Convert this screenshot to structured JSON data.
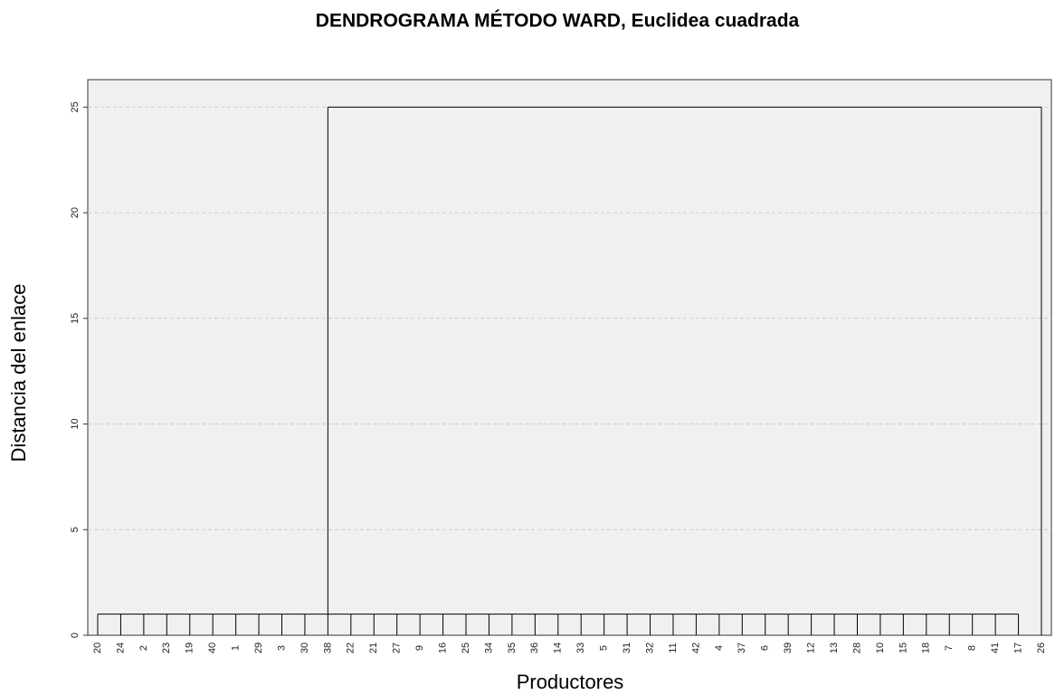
{
  "chart_data": {
    "type": "dendrogram",
    "title": "DENDROGRAMA MÉTODO WARD, Euclidea cuadrada",
    "xlabel": "Productores",
    "ylabel": "Distancia del enlace",
    "leaves": [
      "20",
      "24",
      "2",
      "23",
      "19",
      "40",
      "1",
      "29",
      "3",
      "30",
      "38",
      "22",
      "21",
      "27",
      "9",
      "16",
      "25",
      "34",
      "35",
      "36",
      "14",
      "33",
      "5",
      "31",
      "32",
      "11",
      "42",
      "4",
      "37",
      "6",
      "39",
      "12",
      "13",
      "28",
      "10",
      "15",
      "18",
      "7",
      "8",
      "41",
      "17",
      "26"
    ],
    "merge_heights": [
      1,
      25
    ],
    "ylim": [
      0,
      26.3
    ],
    "yticks": [
      0,
      5,
      10,
      15,
      20,
      25
    ],
    "grid": true,
    "color": "#000000"
  }
}
